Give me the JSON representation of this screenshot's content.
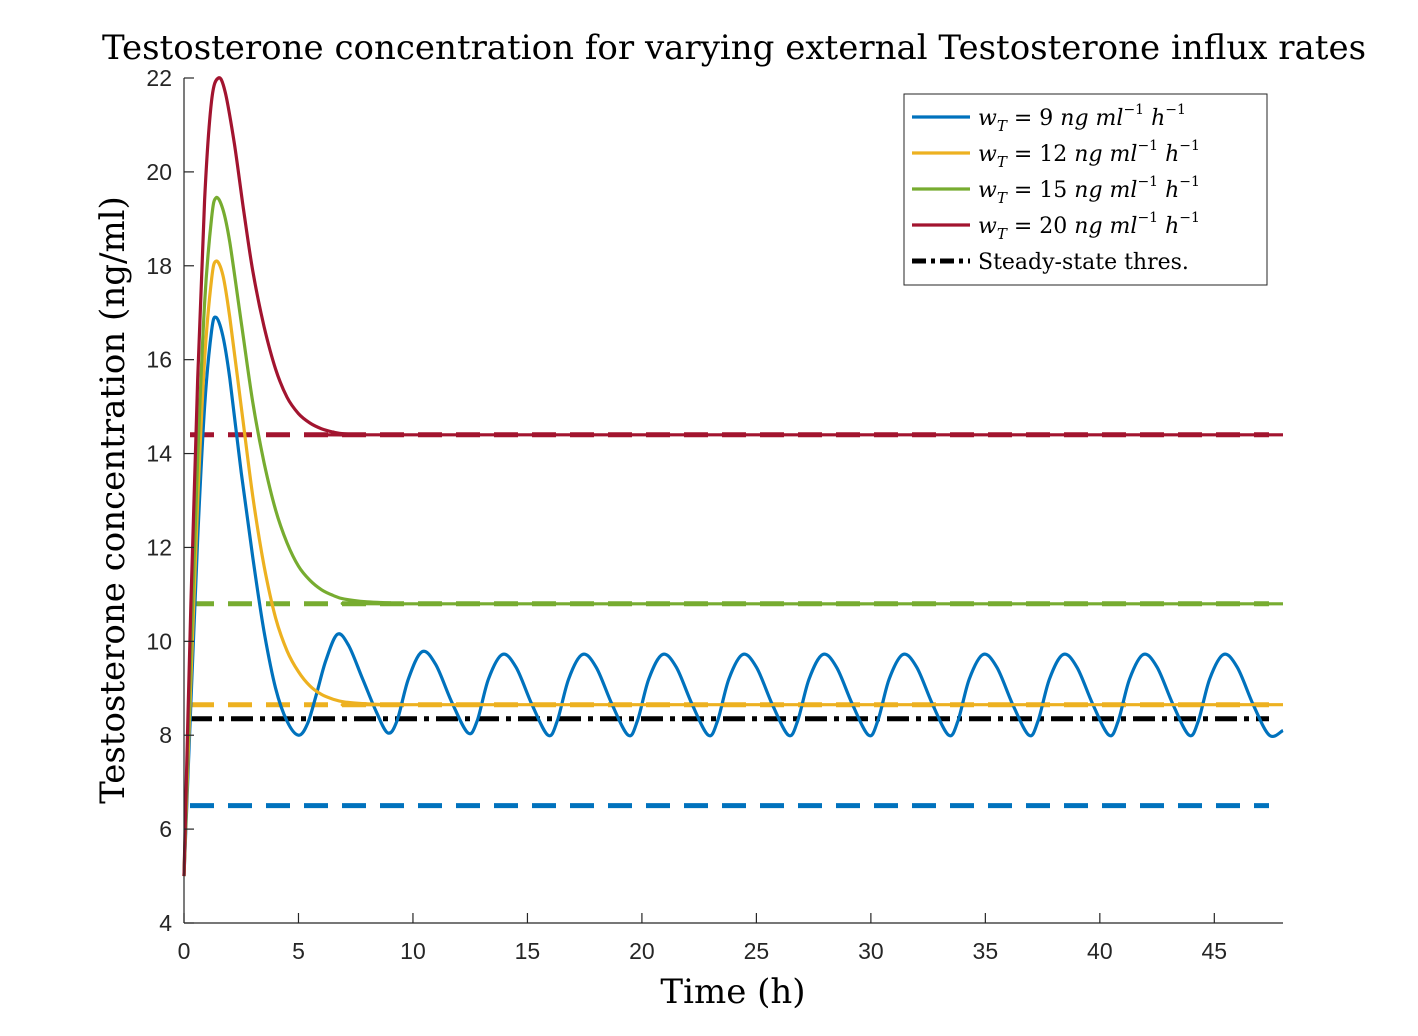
{
  "chart_data": {
    "type": "line",
    "title": "Testosterone concentration for varying external Testosterone influx rates",
    "xlabel": "Time (h)",
    "ylabel": "Testosterone concentration (ng/ml)",
    "xlim": [
      0,
      48
    ],
    "ylim": [
      4,
      22
    ],
    "xticks": [
      0,
      5,
      10,
      15,
      20,
      25,
      30,
      35,
      40,
      45
    ],
    "yticks": [
      4,
      6,
      8,
      10,
      12,
      14,
      16,
      18,
      20,
      22
    ],
    "grid": false,
    "legend_position": "top-right",
    "series": [
      {
        "name": "w_T = 9 ng ml^-1 h^-1",
        "legend_parts": {
          "var": "w",
          "sub": "T",
          "eq": " = 9 ",
          "unit1": "ng ml",
          "sup1": "−1",
          "unit2": " h",
          "sup2": "−1"
        },
        "color": "#0072BD",
        "style": "solid",
        "points": [
          [
            0,
            5.0
          ],
          [
            0.3,
            8.7
          ],
          [
            0.6,
            12.2
          ],
          [
            0.9,
            15.0
          ],
          [
            1.2,
            16.6
          ],
          [
            1.4,
            16.9
          ],
          [
            1.7,
            16.5
          ],
          [
            2.0,
            15.6
          ],
          [
            2.5,
            13.6
          ],
          [
            3.0,
            11.8
          ],
          [
            3.5,
            10.2
          ],
          [
            4.0,
            9.0
          ],
          [
            4.5,
            8.3
          ],
          [
            5.0,
            8.0
          ],
          [
            5.4,
            8.25
          ],
          [
            5.8,
            8.9
          ],
          [
            6.2,
            9.6
          ],
          [
            6.7,
            10.15
          ],
          [
            7.2,
            9.9
          ],
          [
            7.8,
            9.2
          ],
          [
            8.4,
            8.5
          ],
          [
            8.9,
            8.05
          ],
          [
            9.3,
            8.3
          ],
          [
            9.8,
            9.2
          ],
          [
            10.4,
            9.78
          ],
          [
            11.0,
            9.5
          ],
          [
            11.7,
            8.7
          ],
          [
            12.4,
            8.05
          ],
          [
            12.8,
            8.3
          ],
          [
            13.3,
            9.2
          ],
          [
            13.9,
            9.72
          ],
          [
            14.5,
            9.45
          ],
          [
            15.2,
            8.65
          ],
          [
            15.9,
            8.0
          ],
          [
            16.3,
            8.3
          ],
          [
            16.8,
            9.2
          ],
          [
            17.4,
            9.72
          ],
          [
            18.0,
            9.45
          ],
          [
            18.7,
            8.65
          ],
          [
            19.4,
            8.0
          ],
          [
            19.8,
            8.3
          ],
          [
            20.3,
            9.2
          ],
          [
            20.9,
            9.72
          ],
          [
            21.5,
            9.45
          ],
          [
            22.2,
            8.65
          ],
          [
            22.9,
            8.0
          ],
          [
            23.3,
            8.3
          ],
          [
            23.8,
            9.2
          ],
          [
            24.4,
            9.72
          ],
          [
            25.0,
            9.45
          ],
          [
            25.7,
            8.65
          ],
          [
            26.4,
            8.0
          ],
          [
            26.8,
            8.3
          ],
          [
            27.3,
            9.2
          ],
          [
            27.9,
            9.72
          ],
          [
            28.5,
            9.45
          ],
          [
            29.2,
            8.65
          ],
          [
            29.9,
            8.0
          ],
          [
            30.3,
            8.3
          ],
          [
            30.8,
            9.2
          ],
          [
            31.4,
            9.72
          ],
          [
            32.0,
            9.45
          ],
          [
            32.7,
            8.65
          ],
          [
            33.4,
            8.0
          ],
          [
            33.8,
            8.3
          ],
          [
            34.3,
            9.2
          ],
          [
            34.9,
            9.72
          ],
          [
            35.5,
            9.45
          ],
          [
            36.2,
            8.65
          ],
          [
            36.9,
            8.0
          ],
          [
            37.3,
            8.3
          ],
          [
            37.8,
            9.2
          ],
          [
            38.4,
            9.72
          ],
          [
            39.0,
            9.45
          ],
          [
            39.7,
            8.65
          ],
          [
            40.4,
            8.0
          ],
          [
            40.8,
            8.3
          ],
          [
            41.3,
            9.2
          ],
          [
            41.9,
            9.72
          ],
          [
            42.5,
            9.45
          ],
          [
            43.2,
            8.65
          ],
          [
            43.9,
            8.0
          ],
          [
            44.3,
            8.3
          ],
          [
            44.8,
            9.2
          ],
          [
            45.4,
            9.72
          ],
          [
            46.0,
            9.45
          ],
          [
            46.7,
            8.65
          ],
          [
            47.4,
            8.0
          ],
          [
            48.0,
            8.1
          ]
        ]
      },
      {
        "name": "w_T = 12 ng ml^-1 h^-1",
        "legend_parts": {
          "var": "w",
          "sub": "T",
          "eq": " = 12 ",
          "unit1": "ng ml",
          "sup1": "−1",
          "unit2": " h",
          "sup2": "−1"
        },
        "color": "#EDB120",
        "style": "solid",
        "points": [
          [
            0,
            5.0
          ],
          [
            0.3,
            9.2
          ],
          [
            0.6,
            13.0
          ],
          [
            0.9,
            16.0
          ],
          [
            1.2,
            17.7
          ],
          [
            1.4,
            18.1
          ],
          [
            1.7,
            17.8
          ],
          [
            2.0,
            16.9
          ],
          [
            2.5,
            15.0
          ],
          [
            3.0,
            13.1
          ],
          [
            3.5,
            11.6
          ],
          [
            4.0,
            10.5
          ],
          [
            4.5,
            9.8
          ],
          [
            5.0,
            9.35
          ],
          [
            5.5,
            9.05
          ],
          [
            6.0,
            8.87
          ],
          [
            6.5,
            8.77
          ],
          [
            7.0,
            8.71
          ],
          [
            8.0,
            8.67
          ],
          [
            9.0,
            8.65
          ],
          [
            10.0,
            8.65
          ],
          [
            48.0,
            8.65
          ]
        ]
      },
      {
        "name": "w_T = 15 ng ml^-1 h^-1",
        "legend_parts": {
          "var": "w",
          "sub": "T",
          "eq": " = 15 ",
          "unit1": "ng ml",
          "sup1": "−1",
          "unit2": " h",
          "sup2": "−1"
        },
        "color": "#77AC30",
        "style": "solid",
        "points": [
          [
            0,
            5.0
          ],
          [
            0.3,
            9.8
          ],
          [
            0.6,
            13.9
          ],
          [
            0.9,
            17.2
          ],
          [
            1.2,
            19.0
          ],
          [
            1.4,
            19.45
          ],
          [
            1.7,
            19.2
          ],
          [
            2.0,
            18.5
          ],
          [
            2.5,
            16.8
          ],
          [
            3.0,
            15.1
          ],
          [
            3.5,
            13.8
          ],
          [
            4.0,
            12.8
          ],
          [
            4.5,
            12.1
          ],
          [
            5.0,
            11.6
          ],
          [
            5.5,
            11.3
          ],
          [
            6.0,
            11.1
          ],
          [
            6.5,
            10.98
          ],
          [
            7.0,
            10.9
          ],
          [
            8.0,
            10.84
          ],
          [
            9.0,
            10.82
          ],
          [
            10.0,
            10.8
          ],
          [
            48.0,
            10.8
          ]
        ]
      },
      {
        "name": "w_T = 20 ng ml^-1 h^-1",
        "legend_parts": {
          "var": "w",
          "sub": "T",
          "eq": " = 20 ",
          "unit1": "ng ml",
          "sup1": "−1",
          "unit2": " h",
          "sup2": "−1"
        },
        "color": "#A2142F",
        "style": "solid",
        "points": [
          [
            0,
            5.0
          ],
          [
            0.3,
            10.8
          ],
          [
            0.6,
            15.6
          ],
          [
            0.9,
            19.4
          ],
          [
            1.2,
            21.5
          ],
          [
            1.5,
            22.0
          ],
          [
            1.8,
            21.7
          ],
          [
            2.2,
            20.6
          ],
          [
            2.6,
            19.2
          ],
          [
            3.0,
            17.9
          ],
          [
            3.5,
            16.7
          ],
          [
            4.0,
            15.8
          ],
          [
            4.5,
            15.2
          ],
          [
            5.0,
            14.85
          ],
          [
            5.5,
            14.65
          ],
          [
            6.0,
            14.53
          ],
          [
            6.5,
            14.46
          ],
          [
            7.0,
            14.42
          ],
          [
            8.0,
            14.4
          ],
          [
            9.0,
            14.4
          ],
          [
            48.0,
            14.4
          ]
        ]
      }
    ],
    "reference_lines": [
      {
        "y": 6.5,
        "color": "#0072BD",
        "style": "dashed"
      },
      {
        "y": 8.65,
        "color": "#EDB120",
        "style": "dashed"
      },
      {
        "y": 10.8,
        "color": "#77AC30",
        "style": "dashed"
      },
      {
        "y": 14.4,
        "color": "#A2142F",
        "style": "dashed"
      },
      {
        "y": 8.35,
        "color": "#000000",
        "style": "dashdot",
        "name": "Steady-state thres."
      }
    ],
    "legend": {
      "threshold_label": "Steady-state thres."
    }
  }
}
